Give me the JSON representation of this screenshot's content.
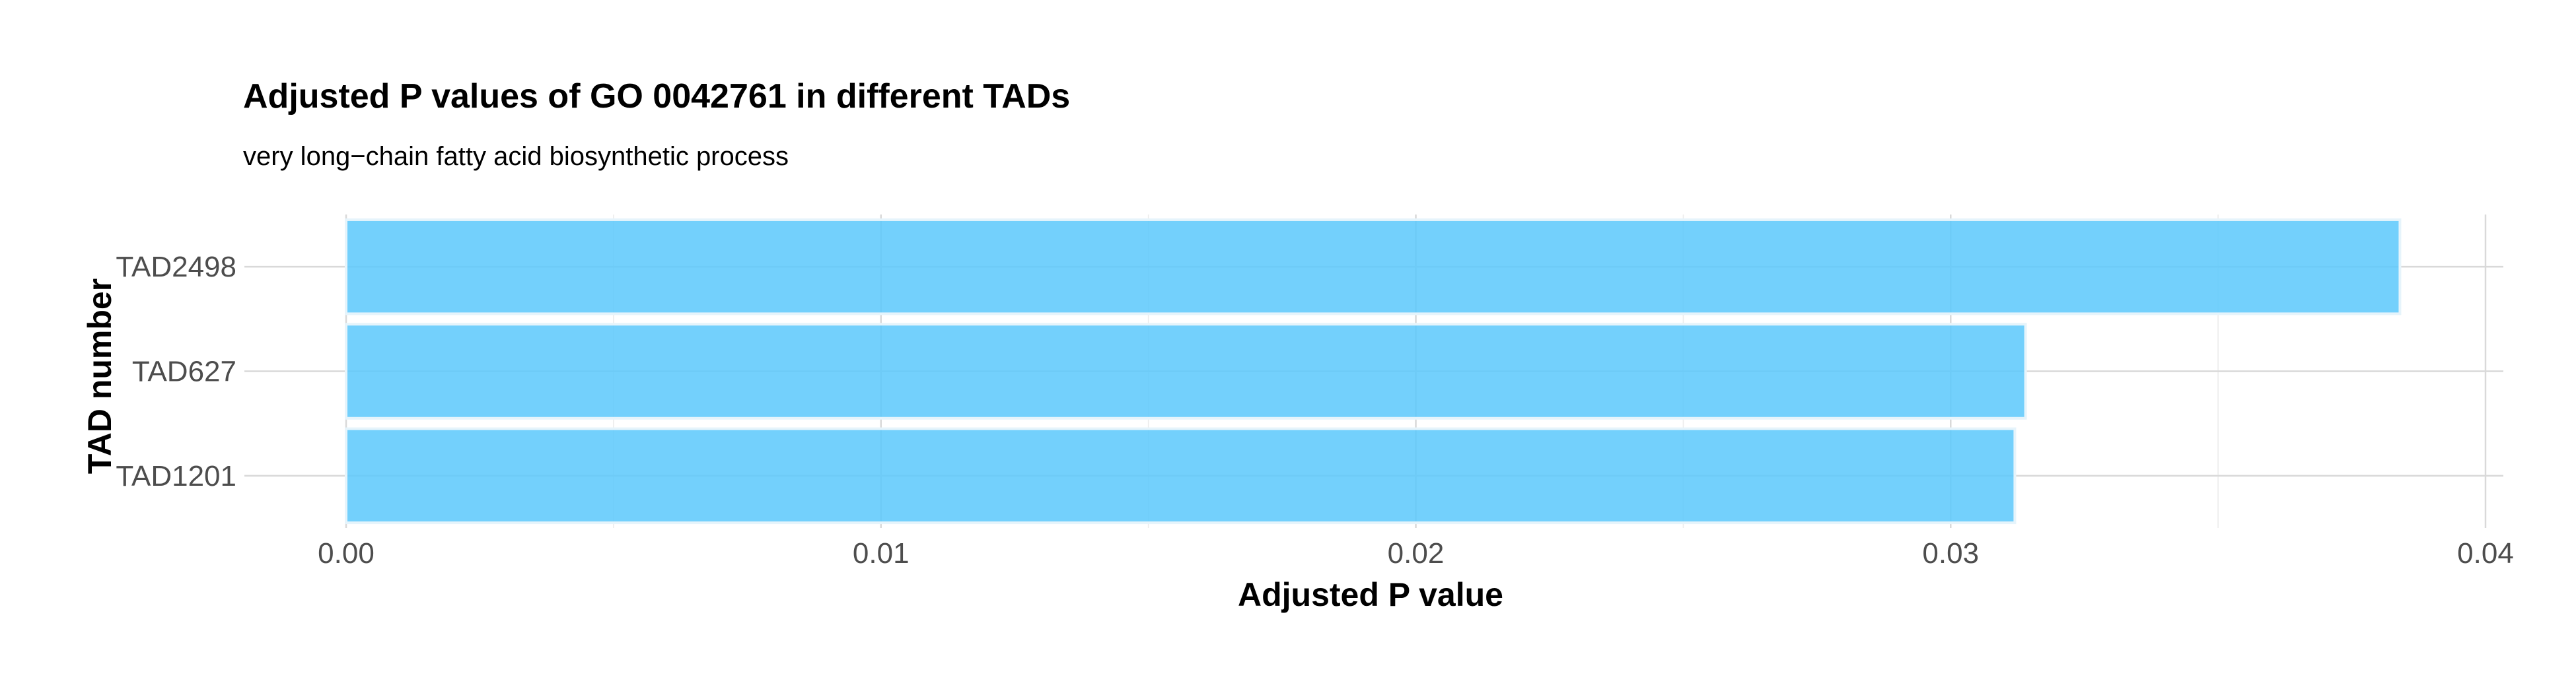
{
  "chart_data": {
    "type": "bar",
    "orientation": "horizontal",
    "title": "Adjusted P values of GO 0042761 in different TADs",
    "subtitle": "very long−chain fatty acid biosynthetic process",
    "xlabel": "Adjusted P value",
    "ylabel": "TAD number",
    "categories": [
      "TAD2498",
      "TAD627",
      "TAD1201"
    ],
    "values": [
      0.0384,
      0.0314,
      0.0312
    ],
    "xlim": [
      0,
      0.04
    ],
    "xticks": [
      0,
      0.01,
      0.02,
      0.03,
      0.04
    ],
    "xtick_labels": [
      "0.00",
      "0.01",
      "0.02",
      "0.03",
      "0.04"
    ],
    "grid": true,
    "bar_color": "#5bc8fb"
  }
}
